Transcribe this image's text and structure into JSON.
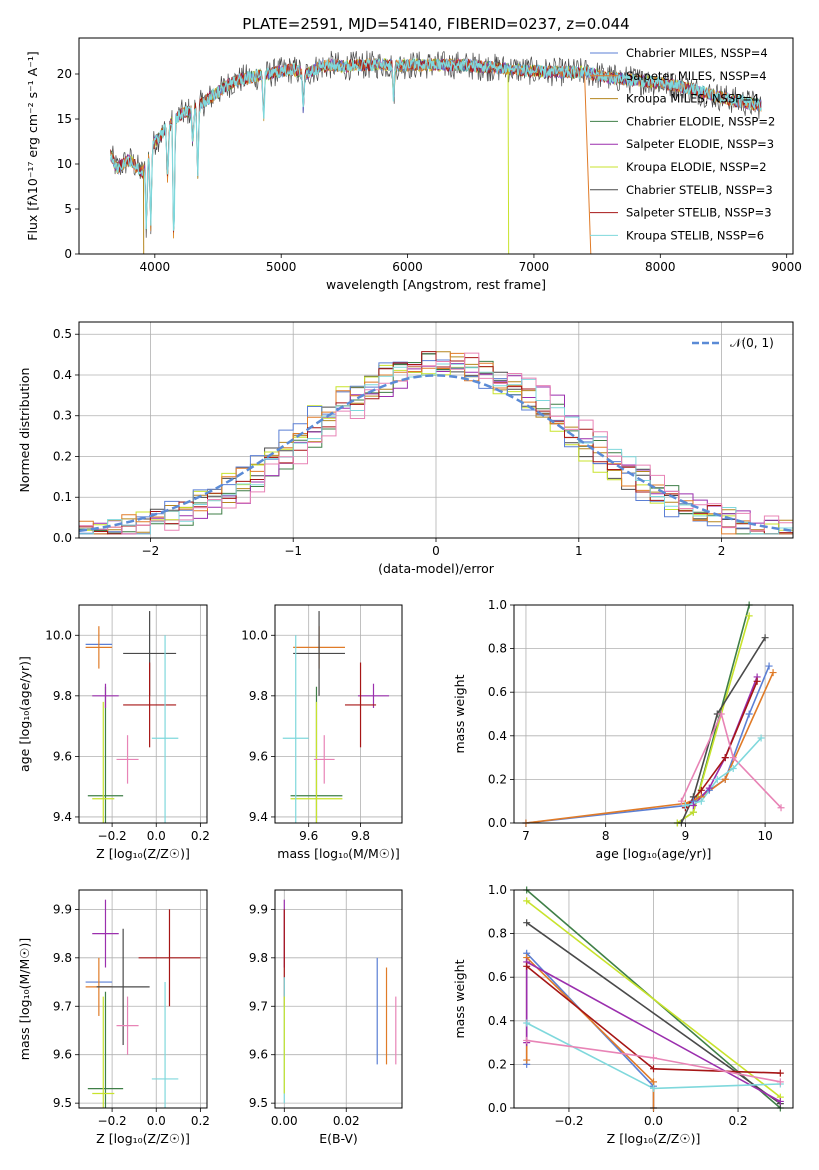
{
  "figure": {
    "title": "PLATE=2591, MJD=54140, FIBERID=0237, z=0.044"
  },
  "colors": {
    "grid": "#b0b0b0",
    "ncurve": "#5b8bd6",
    "models": [
      "#5b7fd4",
      "#e07b28",
      "#b5861f",
      "#3f7f47",
      "#9b2fae",
      "#c8e32c",
      "#4a4a4a",
      "#a61616",
      "#7fd8dc",
      "#e884b6"
    ]
  },
  "chart_data": [
    {
      "id": "spectrum",
      "type": "line",
      "xlabel": "wavelength [Angstrom, rest frame]",
      "ylabel": "Flux [fλ10⁻¹⁷ erg cm⁻² s⁻¹ A⁻¹]",
      "xlim": [
        3400,
        9050
      ],
      "ylim": [
        0,
        24
      ],
      "xticks": [
        4000,
        5000,
        6000,
        7000,
        8000,
        9000
      ],
      "yticks": [
        0,
        5,
        10,
        15,
        20
      ],
      "grid": false,
      "legend_position": "upper-right",
      "legend": [
        "Chabrier MILES, NSSP=4",
        "Salpeter MILES, NSSP=4",
        "Kroupa MILES, NSSP=4",
        "Chabrier ELODIE, NSSP=2",
        "Salpeter ELODIE, NSSP=3",
        "Kroupa ELODIE, NSSP=2",
        "Chabrier STELIB, NSSP=3",
        "Salpeter STELIB, NSSP=3",
        "Kroupa STELIB, NSSP=6"
      ],
      "legend_color_index": [
        0,
        1,
        2,
        3,
        4,
        5,
        6,
        7,
        8
      ],
      "continuum": {
        "x": [
          3650,
          3700,
          3800,
          3900,
          4000,
          4100,
          4200,
          4300,
          4400,
          4500,
          4600,
          4700,
          4800,
          4900,
          5000,
          5100,
          5200,
          5300,
          5400,
          5500,
          5600,
          5700,
          5800,
          5900,
          6000,
          6200,
          6400,
          6600,
          6800,
          7000,
          7200,
          7400,
          7600,
          7800,
          8000,
          8200,
          8400,
          8600,
          8800
        ],
        "y": [
          11,
          9.5,
          10.5,
          9,
          12.5,
          14,
          15.5,
          16,
          17,
          18,
          19,
          19.5,
          19.7,
          20,
          20.3,
          20.5,
          20,
          20.8,
          21,
          20.8,
          21,
          21,
          21.1,
          20.9,
          21,
          21,
          21,
          20.8,
          20.6,
          20.3,
          20.2,
          20.2,
          19.6,
          19.3,
          19,
          18.5,
          17.7,
          17,
          16.5
        ]
      },
      "features": [
        {
          "x": 3933,
          "y": 2.5
        },
        {
          "x": 3968,
          "y": 3
        },
        {
          "x": 4101,
          "y": 8
        },
        {
          "x": 4150,
          "y": 0
        },
        {
          "x": 4300,
          "y": 12
        },
        {
          "x": 4340,
          "y": 9
        },
        {
          "x": 4861,
          "y": 15
        },
        {
          "x": 5175,
          "y": 16
        },
        {
          "x": 5890,
          "y": 17
        }
      ],
      "dropouts": [
        {
          "series": 2,
          "x_from": 3910,
          "x_to": 3912,
          "y_to": 0
        },
        {
          "series": 5,
          "x_from": 6795,
          "x_to": 6800,
          "y_to": 0
        },
        {
          "series": 1,
          "x_from": 7400,
          "x_to": 7450,
          "y_to": 0
        }
      ]
    },
    {
      "id": "residuals",
      "type": "step",
      "xlabel": "(data-model)/error",
      "ylabel": "Normed distribution",
      "xlim": [
        -2.5,
        2.5
      ],
      "ylim": [
        0,
        0.53
      ],
      "xticks": [
        -2,
        -1,
        0,
        1,
        2
      ],
      "yticks": [
        0,
        0.1,
        0.2,
        0.3,
        0.4,
        0.5
      ],
      "grid": true,
      "legend_position": "upper-right",
      "legend": [
        "𝒩(0, 1)"
      ],
      "bin_width": 0.1,
      "bins_from": -2.5,
      "reference_curve": {
        "type": "normal",
        "mean": 0,
        "sigma": 1
      }
    },
    {
      "id": "age-vs-Z",
      "type": "errorbar",
      "xlabel": "Z [log₁₀(Z/Z☉)]",
      "ylabel": "age  [log₁₀(age/yr)]",
      "xlim": [
        -0.35,
        0.23
      ],
      "ylim": [
        9.38,
        10.1
      ],
      "xticks": [
        -0.2,
        0.0,
        0.2
      ],
      "xtick_labels": [
        "−0.2",
        "0.0",
        "0.2"
      ],
      "yticks": [
        9.4,
        9.6,
        9.8,
        10.0
      ],
      "grid": true,
      "points": [
        {
          "c": 0,
          "x": -0.26,
          "xerr": 0.06,
          "y": 9.97,
          "yerr": 0.0
        },
        {
          "c": 1,
          "x": -0.26,
          "xerr": 0.06,
          "y": 9.96,
          "yerr": 0.07
        },
        {
          "c": 3,
          "x": -0.23,
          "xerr": 0.08,
          "y": 9.47,
          "yerr": 0.36
        },
        {
          "c": 4,
          "x": -0.23,
          "xerr": 0.06,
          "y": 9.8,
          "yerr": 0.04
        },
        {
          "c": 5,
          "x": -0.24,
          "xerr": 0.05,
          "y": 9.46,
          "yerr": 0.32
        },
        {
          "c": 6,
          "x": -0.03,
          "xerr": 0.12,
          "y": 9.94,
          "yerr": 0.14
        },
        {
          "c": 7,
          "x": -0.03,
          "xerr": 0.12,
          "y": 9.77,
          "yerr": 0.14
        },
        {
          "c": 8,
          "x": 0.04,
          "xerr": 0.06,
          "y": 9.66,
          "yerr": 0.34
        },
        {
          "c": 9,
          "x": -0.13,
          "xerr": 0.05,
          "y": 9.59,
          "yerr": 0.08
        }
      ]
    },
    {
      "id": "age-vs-mass",
      "type": "errorbar",
      "xlabel": "mass [log₁₀(M/M☉)]",
      "ylabel": "",
      "xlim": [
        9.47,
        9.96
      ],
      "ylim": [
        9.38,
        10.1
      ],
      "xticks": [
        9.6,
        9.8
      ],
      "yticks": [
        9.4,
        9.6,
        9.8,
        10.0
      ],
      "grid": true,
      "points": [
        {
          "c": 0,
          "x": 9.75,
          "xerr": 0.0,
          "y": 9.97,
          "yerr": 0.0
        },
        {
          "c": 1,
          "x": 9.64,
          "xerr": 0.1,
          "y": 9.96,
          "yerr": 0.07
        },
        {
          "c": 3,
          "x": 9.63,
          "xerr": 0.1,
          "y": 9.47,
          "yerr": 0.36
        },
        {
          "c": 4,
          "x": 9.85,
          "xerr": 0.06,
          "y": 9.8,
          "yerr": 0.04
        },
        {
          "c": 5,
          "x": 9.63,
          "xerr": 0.1,
          "y": 9.46,
          "yerr": 0.32
        },
        {
          "c": 6,
          "x": 9.64,
          "xerr": 0.1,
          "y": 9.94,
          "yerr": 0.14
        },
        {
          "c": 7,
          "x": 9.8,
          "xerr": 0.06,
          "y": 9.77,
          "yerr": 0.14
        },
        {
          "c": 8,
          "x": 9.55,
          "xerr": 0.05,
          "y": 9.66,
          "yerr": 0.34
        },
        {
          "c": 9,
          "x": 9.66,
          "xerr": 0.04,
          "y": 9.59,
          "yerr": 0.08
        }
      ]
    },
    {
      "id": "mass-weight-vs-age",
      "type": "line",
      "xlabel": "age  [log₁₀(age/yr)]",
      "ylabel": "mass weight",
      "xlim": [
        6.85,
        10.35
      ],
      "ylim": [
        0,
        1.0
      ],
      "xticks": [
        7,
        8,
        9,
        10
      ],
      "yticks": [
        0.0,
        0.2,
        0.4,
        0.6,
        0.8,
        1.0
      ],
      "grid": true,
      "series": [
        {
          "c": 3,
          "x": [
            8.9,
            9.1,
            9.8
          ],
          "y": [
            0.0,
            0.05,
            1.0
          ]
        },
        {
          "c": 5,
          "x": [
            8.9,
            9.1,
            9.8
          ],
          "y": [
            0.0,
            0.05,
            0.95
          ]
        },
        {
          "c": 6,
          "x": [
            8.95,
            9.1,
            9.4,
            10.0
          ],
          "y": [
            0.0,
            0.12,
            0.5,
            0.85
          ]
        },
        {
          "c": 0,
          "x": [
            7.0,
            9.0,
            9.1,
            9.3,
            9.5,
            9.8,
            10.05
          ],
          "y": [
            0.0,
            0.08,
            0.1,
            0.15,
            0.2,
            0.5,
            0.72
          ]
        },
        {
          "c": 1,
          "x": [
            7.0,
            9.0,
            9.2,
            9.5,
            10.1
          ],
          "y": [
            0.0,
            0.09,
            0.12,
            0.2,
            0.69
          ]
        },
        {
          "c": 4,
          "x": [
            9.1,
            9.3,
            9.5,
            9.9
          ],
          "y": [
            0.08,
            0.16,
            0.3,
            0.67
          ]
        },
        {
          "c": 7,
          "x": [
            9.0,
            9.2,
            9.5,
            9.9
          ],
          "y": [
            0.07,
            0.15,
            0.3,
            0.65
          ]
        },
        {
          "c": 9,
          "x": [
            8.95,
            9.45,
            9.6,
            10.2
          ],
          "y": [
            0.1,
            0.5,
            0.3,
            0.07
          ]
        },
        {
          "c": 8,
          "x": [
            9.0,
            9.2,
            9.4,
            9.6,
            9.95
          ],
          "y": [
            0.08,
            0.1,
            0.2,
            0.25,
            0.39
          ]
        }
      ]
    },
    {
      "id": "mass-vs-Z",
      "type": "errorbar",
      "xlabel": "Z [log₁₀(Z/Z☉)]",
      "ylabel": "mass [log₁₀(M/M☉)]",
      "xlim": [
        -0.35,
        0.23
      ],
      "ylim": [
        9.49,
        9.94
      ],
      "xticks": [
        -0.2,
        0.0,
        0.2
      ],
      "xtick_labels": [
        "−0.2",
        "0.0",
        "0.2"
      ],
      "yticks": [
        9.5,
        9.6,
        9.7,
        9.8,
        9.9
      ],
      "grid": true,
      "points": [
        {
          "c": 0,
          "x": -0.26,
          "xerr": 0.06,
          "y": 9.75,
          "yerr": 0.0
        },
        {
          "c": 1,
          "x": -0.26,
          "xerr": 0.06,
          "y": 9.74,
          "yerr": 0.06
        },
        {
          "c": 3,
          "x": -0.23,
          "xerr": 0.08,
          "y": 9.53,
          "yerr": 0.2
        },
        {
          "c": 4,
          "x": -0.23,
          "xerr": 0.06,
          "y": 9.85,
          "yerr": 0.07
        },
        {
          "c": 5,
          "x": -0.24,
          "xerr": 0.05,
          "y": 9.52,
          "yerr": 0.2
        },
        {
          "c": 6,
          "x": -0.15,
          "xerr": 0.12,
          "y": 9.74,
          "yerr": 0.12
        },
        {
          "c": 7,
          "x": 0.06,
          "xerr": 0.14,
          "y": 9.8,
          "yerr": 0.1
        },
        {
          "c": 8,
          "x": 0.04,
          "xerr": 0.06,
          "y": 9.55,
          "yerr": 0.2
        },
        {
          "c": 9,
          "x": -0.13,
          "xerr": 0.05,
          "y": 9.66,
          "yerr": 0.06
        }
      ]
    },
    {
      "id": "mass-vs-ebv",
      "type": "errorbar",
      "xlabel": "E(B-V)",
      "ylabel": "",
      "xlim": [
        -0.003,
        0.038
      ],
      "ylim": [
        9.49,
        9.94
      ],
      "xticks": [
        0.0,
        0.02
      ],
      "xtick_labels": [
        "0.00",
        "0.02"
      ],
      "yticks": [
        9.5,
        9.6,
        9.7,
        9.8,
        9.9
      ],
      "grid": true,
      "points": [
        {
          "c": 0,
          "x": 0.03,
          "xerr": 0.0,
          "y": 9.69,
          "yerr": 0.11
        },
        {
          "c": 1,
          "x": 0.033,
          "xerr": 0.0,
          "y": 9.68,
          "yerr": 0.1
        },
        {
          "c": 9,
          "x": 0.036,
          "xerr": 0.0,
          "y": 9.65,
          "yerr": 0.07
        },
        {
          "c": 4,
          "x": 0.0,
          "xerr": 0.0,
          "y": 9.85,
          "yerr": 0.07
        },
        {
          "c": 7,
          "x": 0.0,
          "xerr": 0.0,
          "y": 9.8,
          "yerr": 0.1
        },
        {
          "c": 8,
          "x": 0.0,
          "xerr": 0.0,
          "y": 9.63,
          "yerr": 0.13
        },
        {
          "c": 5,
          "x": 0.0,
          "xerr": 0.0,
          "y": 9.62,
          "yerr": 0.1
        }
      ]
    },
    {
      "id": "mass-weight-vs-Z",
      "type": "line",
      "xlabel": "Z [log₁₀(Z/Z☉)]",
      "ylabel": "mass weight",
      "xlim": [
        -0.33,
        0.33
      ],
      "ylim": [
        0,
        1.0
      ],
      "xticks": [
        -0.2,
        0.0,
        0.2
      ],
      "xtick_labels": [
        "−0.2",
        "0.0",
        "0.2"
      ],
      "yticks": [
        0.0,
        0.2,
        0.4,
        0.6,
        0.8,
        1.0
      ],
      "grid": true,
      "series": [
        {
          "c": 3,
          "x": [
            -0.3,
            0.3
          ],
          "y": [
            1.0,
            0.0
          ]
        },
        {
          "c": 5,
          "x": [
            -0.3,
            0.3
          ],
          "y": [
            0.95,
            0.05
          ]
        },
        {
          "c": 6,
          "x": [
            -0.3,
            0.3
          ],
          "y": [
            0.85,
            0.02
          ]
        },
        {
          "c": 0,
          "x": [
            -0.3,
            -0.3,
            0.0,
            0.0
          ],
          "y": [
            0.2,
            0.71,
            0.1,
            0.0
          ]
        },
        {
          "c": 1,
          "x": [
            -0.3,
            -0.3,
            0.0,
            0.0
          ],
          "y": [
            0.22,
            0.69,
            0.12,
            0.0
          ]
        },
        {
          "c": 4,
          "x": [
            -0.3,
            -0.3,
            0.3
          ],
          "y": [
            0.3,
            0.67,
            0.03
          ]
        },
        {
          "c": 7,
          "x": [
            -0.3,
            0.0,
            0.3
          ],
          "y": [
            0.65,
            0.18,
            0.16
          ]
        },
        {
          "c": 8,
          "x": [
            -0.3,
            0.0,
            0.3
          ],
          "y": [
            0.39,
            0.09,
            0.11
          ]
        },
        {
          "c": 9,
          "x": [
            -0.3,
            0.0,
            0.3
          ],
          "y": [
            0.31,
            0.23,
            0.12
          ]
        }
      ]
    }
  ]
}
